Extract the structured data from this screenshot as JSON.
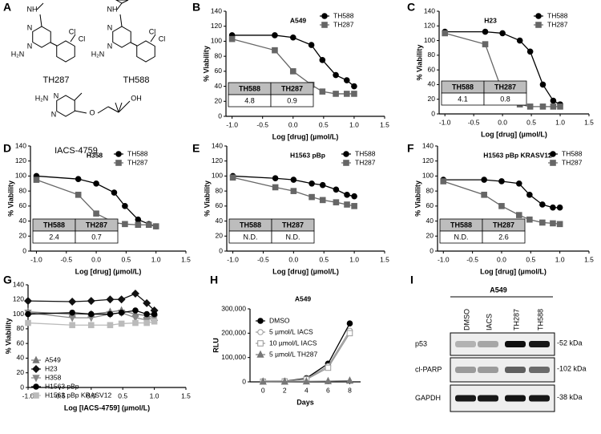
{
  "structures": {
    "panel_label": "A",
    "molecules": [
      {
        "name": "TH287",
        "atoms": [
          "NH",
          "N",
          "N",
          "H₂N",
          "Cl",
          "Cl"
        ]
      },
      {
        "name": "TH588",
        "atoms": [
          "NH",
          "N",
          "N",
          "H₂N",
          "Cl",
          "Cl"
        ]
      },
      {
        "name": "IACS-4759",
        "atoms": [
          "N",
          "N",
          "H₂N",
          "O",
          "OH"
        ]
      }
    ]
  },
  "chart_data": [
    {
      "type": "line",
      "panel_label": "B",
      "title": "A549",
      "x_label": "Log [drug] (µmol/L)",
      "y_label": "% Viability",
      "x": [
        -1,
        -0.3,
        0,
        0.3,
        0.48,
        0.7,
        0.88,
        1
      ],
      "xlim": [
        -1.1,
        1.5
      ],
      "xticks": [
        {
          "value": -1,
          "label": "-1.0"
        },
        {
          "value": -0.5,
          "label": "-0.5"
        },
        {
          "value": 0,
          "label": "0.0"
        },
        {
          "value": 0.5,
          "label": "0.5"
        },
        {
          "value": 1,
          "label": "1.0"
        },
        {
          "value": 1.5,
          "label": "1.5"
        }
      ],
      "ylim": [
        0,
        140
      ],
      "yticks": [
        0,
        20,
        40,
        60,
        80,
        100,
        120,
        140
      ],
      "legend": "upper right",
      "series": [
        {
          "name": "TH588",
          "color": "#000000",
          "marker": "circle",
          "values": [
            108,
            108,
            105,
            95,
            75,
            55,
            48,
            40
          ]
        },
        {
          "name": "TH287",
          "color": "#666666",
          "marker": "square",
          "values": [
            103,
            88,
            60,
            42,
            33,
            30,
            30,
            30
          ]
        }
      ],
      "table": {
        "headers": [
          "TH588",
          "TH287"
        ],
        "values": [
          "4.8",
          "0.9"
        ]
      }
    },
    {
      "type": "line",
      "panel_label": "C",
      "title": "H23",
      "x_label": "Log [drug] (µmol/L)",
      "y_label": "% Viability",
      "x": [
        -1,
        -0.3,
        0,
        0.3,
        0.48,
        0.7,
        0.88,
        1
      ],
      "xlim": [
        -1.1,
        1.5
      ],
      "xticks": [
        {
          "value": -1,
          "label": "-1.0"
        },
        {
          "value": -0.5,
          "label": "-0.5"
        },
        {
          "value": 0,
          "label": "0.0"
        },
        {
          "value": 0.5,
          "label": "0.5"
        },
        {
          "value": 1,
          "label": "1.0"
        },
        {
          "value": 1.5,
          "label": "1.5"
        }
      ],
      "ylim": [
        0,
        140
      ],
      "yticks": [
        0,
        20,
        40,
        60,
        80,
        100,
        120,
        140
      ],
      "legend": "upper right",
      "series": [
        {
          "name": "TH588",
          "color": "#000000",
          "marker": "circle",
          "values": [
            112,
            112,
            110,
            100,
            85,
            40,
            18,
            13
          ]
        },
        {
          "name": "TH287",
          "color": "#666666",
          "marker": "square",
          "values": [
            110,
            95,
            30,
            13,
            10,
            10,
            10,
            10
          ]
        }
      ],
      "table": {
        "headers": [
          "TH588",
          "TH287"
        ],
        "values": [
          "4.1",
          "0.8"
        ]
      }
    },
    {
      "type": "line",
      "panel_label": "D",
      "title": "H358",
      "x_label": "Log [drug] (µmol/L)",
      "y_label": "% Viability",
      "x": [
        -1,
        -0.3,
        0,
        0.3,
        0.48,
        0.7,
        0.88,
        1
      ],
      "xlim": [
        -1.1,
        1.5
      ],
      "xticks": [
        {
          "value": -1,
          "label": "-1.0"
        },
        {
          "value": -0.5,
          "label": "-0.5"
        },
        {
          "value": 0,
          "label": "0.0"
        },
        {
          "value": 0.5,
          "label": "0.5"
        },
        {
          "value": 1,
          "label": "1.0"
        },
        {
          "value": 1.5,
          "label": "1.5"
        }
      ],
      "ylim": [
        0,
        140
      ],
      "yticks": [
        0,
        20,
        40,
        60,
        80,
        100,
        120,
        140
      ],
      "legend": "upper right",
      "series": [
        {
          "name": "TH588",
          "color": "#000000",
          "marker": "circle",
          "values": [
            100,
            96,
            90,
            78,
            60,
            42,
            36,
            33
          ]
        },
        {
          "name": "TH287",
          "color": "#666666",
          "marker": "square",
          "values": [
            95,
            75,
            50,
            38,
            36,
            35,
            35,
            33
          ]
        }
      ],
      "table": {
        "headers": [
          "TH588",
          "TH287"
        ],
        "values": [
          "2.4",
          "0.7"
        ]
      }
    },
    {
      "type": "line",
      "panel_label": "E",
      "title": "H1563 pBp",
      "x_label": "Log [drug] (µmol/L)",
      "y_label": "% Viability",
      "x": [
        -1,
        -0.3,
        0,
        0.3,
        0.48,
        0.7,
        0.88,
        1
      ],
      "xlim": [
        -1.1,
        1.5
      ],
      "xticks": [
        {
          "value": -1,
          "label": "-1.0"
        },
        {
          "value": -0.5,
          "label": "-0.5"
        },
        {
          "value": 0,
          "label": "0.0"
        },
        {
          "value": 0.5,
          "label": "0.5"
        },
        {
          "value": 1,
          "label": "1.0"
        },
        {
          "value": 1.5,
          "label": "1.5"
        }
      ],
      "ylim": [
        0,
        140
      ],
      "yticks": [
        0,
        20,
        40,
        60,
        80,
        100,
        120,
        140
      ],
      "legend": "upper right",
      "series": [
        {
          "name": "TH588",
          "color": "#000000",
          "marker": "circle",
          "values": [
            100,
            97,
            95,
            90,
            88,
            82,
            75,
            73
          ]
        },
        {
          "name": "TH287",
          "color": "#666666",
          "marker": "square",
          "values": [
            98,
            85,
            80,
            72,
            68,
            65,
            62,
            60
          ]
        }
      ],
      "table": {
        "headers": [
          "TH588",
          "TH287"
        ],
        "values": [
          "N.D.",
          "N.D."
        ]
      }
    },
    {
      "type": "line",
      "panel_label": "F",
      "title": "H1563 pBp KRASV12",
      "x_label": "Log [drug] (µmol/L)",
      "y_label": "% Viability",
      "x": [
        -1,
        -0.3,
        0,
        0.3,
        0.48,
        0.7,
        0.88,
        1
      ],
      "xlim": [
        -1.1,
        1.5
      ],
      "xticks": [
        {
          "value": -1,
          "label": "-1.0"
        },
        {
          "value": -0.5,
          "label": "-0.5"
        },
        {
          "value": 0,
          "label": "0.0"
        },
        {
          "value": 0.5,
          "label": "0.5"
        },
        {
          "value": 1,
          "label": "1.0"
        },
        {
          "value": 1.5,
          "label": "1.5"
        }
      ],
      "ylim": [
        0,
        140
      ],
      "yticks": [
        0,
        20,
        40,
        60,
        80,
        100,
        120,
        140
      ],
      "legend": "upper right",
      "series": [
        {
          "name": "TH588",
          "color": "#000000",
          "marker": "circle",
          "values": [
            95,
            95,
            93,
            90,
            75,
            62,
            58,
            58
          ]
        },
        {
          "name": "TH287",
          "color": "#666666",
          "marker": "square",
          "values": [
            93,
            75,
            60,
            48,
            42,
            38,
            37,
            36
          ]
        }
      ],
      "table": {
        "headers": [
          "TH588",
          "TH287"
        ],
        "values": [
          "N.D.",
          "2.6"
        ]
      }
    },
    {
      "type": "line",
      "panel_label": "G",
      "x_label": "Log [IACS-4759] (µmol/L)",
      "y_label": "% Viability",
      "x": [
        -1,
        -0.3,
        0,
        0.3,
        0.48,
        0.7,
        0.88,
        1
      ],
      "xlim": [
        -1,
        1.5
      ],
      "xticks": [
        {
          "value": -1,
          "label": "-1.0"
        },
        {
          "value": -0.5,
          "label": "-0.5"
        },
        {
          "value": 0,
          "label": "0.0"
        },
        {
          "value": 0.5,
          "label": "0.5"
        },
        {
          "value": 1,
          "label": "1.0"
        },
        {
          "value": 1.5,
          "label": "1.5"
        }
      ],
      "ylim": [
        0,
        140
      ],
      "yticks": [
        0,
        20,
        40,
        60,
        80,
        100,
        120,
        140
      ],
      "legend": "lower left",
      "series": [
        {
          "name": "A549",
          "color": "#777777",
          "marker": "triangle",
          "values": [
            103,
            100,
            100,
            103,
            105,
            100,
            98,
            95
          ]
        },
        {
          "name": "H23",
          "color": "#111111",
          "marker": "diamond",
          "values": [
            118,
            117,
            118,
            120,
            120,
            128,
            115,
            105
          ]
        },
        {
          "name": "H358",
          "color": "#888888",
          "marker": "triangle-down",
          "values": [
            102,
            95,
            95,
            100,
            102,
            95,
            92,
            95
          ]
        },
        {
          "name": "H1563 pBp",
          "color": "#000000",
          "marker": "circle",
          "values": [
            100,
            102,
            100,
            100,
            102,
            105,
            100,
            100
          ]
        },
        {
          "name": "H1563 pBp KRASV12",
          "color": "#bbbbbb",
          "marker": "square",
          "values": [
            88,
            85,
            85,
            85,
            87,
            88,
            88,
            90
          ]
        }
      ]
    },
    {
      "type": "line",
      "panel_label": "H",
      "title": "A549",
      "x_label": "Days",
      "y_label": "RLU",
      "x": [
        0,
        2,
        4,
        6,
        8
      ],
      "xlim": [
        -1.2,
        9
      ],
      "xticks": [
        0,
        2,
        4,
        6,
        8
      ],
      "ylim": [
        0,
        300000
      ],
      "yticks": [
        0,
        {
          "value": 100000,
          "label": "100,000"
        },
        {
          "value": 200000,
          "label": "200,000"
        },
        {
          "value": 300000,
          "label": "300,000"
        }
      ],
      "legend": "upper left",
      "series": [
        {
          "name": "DMSO",
          "color": "#000000",
          "marker": "circle",
          "values": [
            2000,
            3000,
            15000,
            75000,
            240000
          ]
        },
        {
          "name": "5 µmol/L IACS",
          "color": "#999999",
          "marker": "open-circle",
          "values": [
            1000,
            2000,
            12000,
            65000,
            210000
          ]
        },
        {
          "name": "10 µmol/L IACS",
          "color": "#999999",
          "marker": "open-square",
          "values": [
            1000,
            2000,
            10000,
            58000,
            200000
          ]
        },
        {
          "name": "5 µmol/L TH287",
          "color": "#777777",
          "marker": "triangle",
          "values": [
            1000,
            1000,
            2000,
            3000,
            5000
          ]
        }
      ]
    }
  ],
  "western_blot": {
    "panel_label": "I",
    "title": "A549",
    "lanes": [
      "DMSO",
      "IACS",
      "TH287",
      "TH588"
    ],
    "rows": [
      {
        "name": "p53",
        "size": "-52 kDa"
      },
      {
        "name": "cl-PARP",
        "size": "-102 kDa"
      },
      {
        "name": "GAPDH",
        "size": "-38 kDa"
      }
    ]
  }
}
